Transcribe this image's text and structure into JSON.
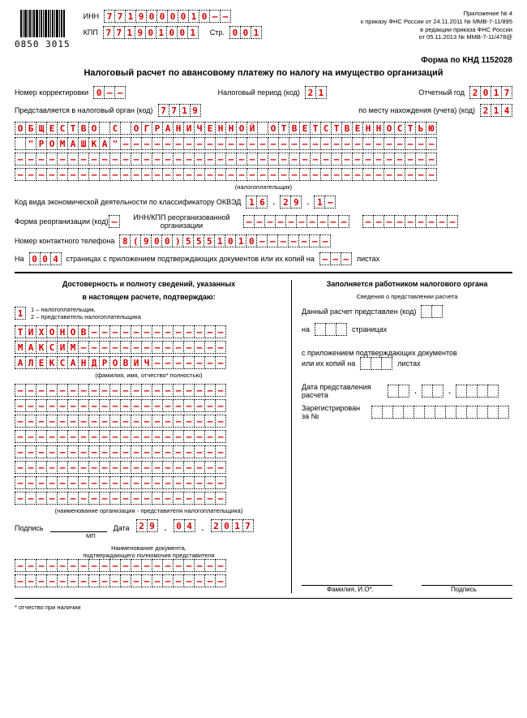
{
  "barcode_number": "0850 3015",
  "header": {
    "inn_label": "ИНН",
    "inn": "7719000010--",
    "kpp_label": "КПП",
    "kpp": "771901001",
    "page_label": "Стр.",
    "page": "001",
    "ref_line1": "Приложение № 4",
    "ref_line2": "к приказу ФНС России от 24.11.2011 № ММВ-7-11/895",
    "ref_line3": "в редакции приказа ФНС России",
    "ref_line4": "от 05.11.2013 № ММВ-7-11/478@"
  },
  "form_code": "Форма по КНД 1152028",
  "title": "Налоговый расчет по авансовому платежу по налогу на имущество организаций",
  "row1": {
    "corr_label": "Номер корректировки",
    "corr": "0--",
    "period_label": "Налоговый период (код)",
    "period": "21",
    "year_label": "Отчетный год",
    "year": "2017"
  },
  "row2": {
    "org_label": "Представляется в налоговый орган (код)",
    "org": "7719",
    "place_label": "по месту нахождения (учета) (код)",
    "place": "214"
  },
  "org_name": [
    "ОБЩЕСТВО С ОГРАНИЧЕННОЙ ОТВЕТСТВЕННОСТЬЮ",
    " \"РОМАШКА\"------------------------------",
    "----------------------------------------",
    "----------------------------------------"
  ],
  "taxpayer_note": "(налогоплательщик)",
  "okved": {
    "label": "Код вида экономической деятельности по классификатору ОКВЭД",
    "p1": "16",
    "p2": "29",
    "p3": "1-"
  },
  "reorg": {
    "form_label": "Форма реорганизации (код)",
    "form": "-",
    "inn_label": "ИНН/КПП реорганизованной организации",
    "inn": "----------",
    "kpp": "---------"
  },
  "phone": {
    "label": "Номер контактного телефона",
    "val": "8(900)5551010-------"
  },
  "pages": {
    "na_label": "На",
    "pages_val": "004",
    "mid_label": "страницах с приложением подтверждающих документов или их копий на",
    "att_val": "---",
    "end_label": "листах"
  },
  "left": {
    "title1": "Достоверность и полноту сведений, указанных",
    "title2": "в настоящем расчете, подтверждаю:",
    "who": "1",
    "who_legend1": "1 – налогоплательщик,",
    "who_legend2": "2 – представитель налогоплательщика",
    "fio": [
      "ТИХОНОВ-------------",
      "МАКСИМ--------------",
      "АЛЕКСАНДРОВИЧ-------"
    ],
    "fio_note": "(фамилия, имя, отчество* полностью)",
    "rep_rows": [
      "--------------------",
      "--------------------",
      "--------------------",
      "--------------------",
      "--------------------",
      "--------------------",
      "--------------------",
      "--------------------"
    ],
    "rep_note": "(наименование организации - представителя налогоплательщика)",
    "sign_label": "Подпись",
    "mp": "МП",
    "date_label": "Дата",
    "date_d": "29",
    "date_m": "04",
    "date_y": "2017",
    "doc_title1": "Наименование документа,",
    "doc_title2": "подтверждающего полномочия представителя",
    "doc_rows": [
      "--------------------",
      "--------------------"
    ]
  },
  "right": {
    "title": "Заполняется работником налогового органа",
    "subtitle": "Сведения о представлении расчета",
    "pres_label": "Данный расчет представлен (код)",
    "pres": "  ",
    "na": "на",
    "pages": "   ",
    "pages_lbl": "страницах",
    "att_label1": "с приложением подтверждающих документов",
    "att_label2": "или их копий на",
    "att": "   ",
    "att_end": "листах",
    "date_label1": "Дата представления",
    "date_label2": "расчета",
    "date_d": "  ",
    "date_m": "  ",
    "date_y": "    ",
    "reg_label1": "Зарегистрирован",
    "reg_label2": "за №",
    "reg": "             ",
    "fio_label": "Фамилия, И.О*.",
    "sign_label": "Подпись"
  },
  "footnote": "* отчество при наличии"
}
